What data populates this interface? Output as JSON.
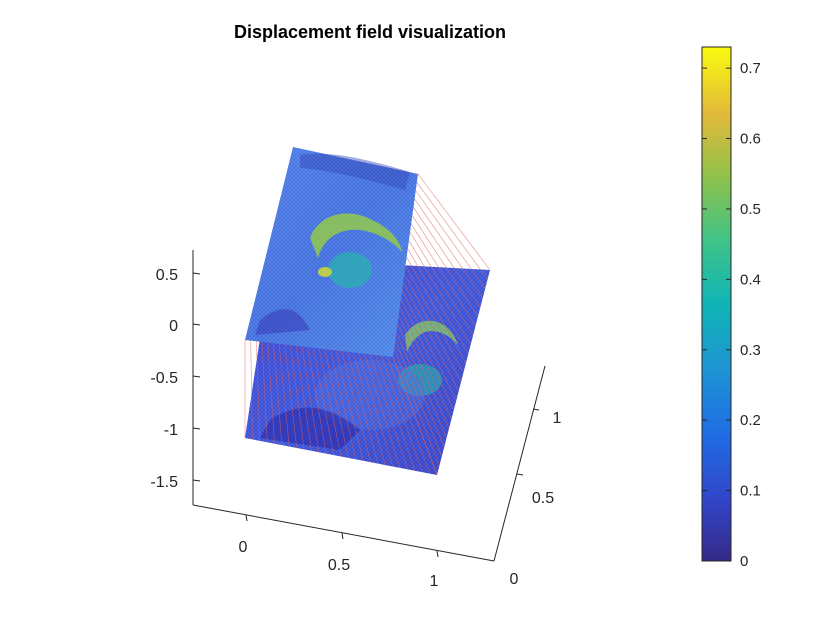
{
  "chart_data": {
    "type": "3d-surface-displacement",
    "title": "Displacement field visualization",
    "colormap": "parula",
    "z_ticks": [
      "0.5",
      "0",
      "-0.5",
      "-1",
      "-1.5"
    ],
    "x_ticks": [
      "0",
      "0.5",
      "1"
    ],
    "y_ticks": [
      "0",
      "0.5",
      "1"
    ],
    "colorbar": {
      "min": 0,
      "max": 0.73,
      "ticks": [
        "0",
        "0.1",
        "0.2",
        "0.3",
        "0.4",
        "0.5",
        "0.6",
        "0.7"
      ]
    },
    "line_color": "#e06060"
  }
}
